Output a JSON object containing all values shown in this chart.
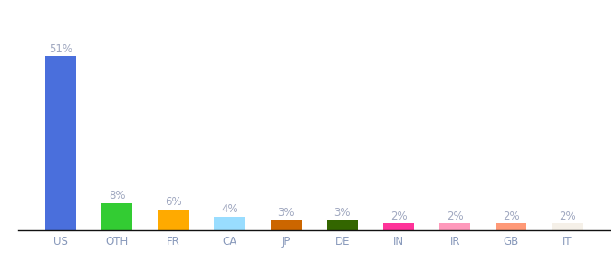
{
  "categories": [
    "US",
    "OTH",
    "FR",
    "CA",
    "JP",
    "DE",
    "IN",
    "IR",
    "GB",
    "IT"
  ],
  "values": [
    51,
    8,
    6,
    4,
    3,
    3,
    2,
    2,
    2,
    2
  ],
  "bar_colors": [
    "#4a6fdc",
    "#33cc33",
    "#ffaa00",
    "#99ddff",
    "#cc6600",
    "#336600",
    "#ff3399",
    "#ff99bb",
    "#ff9977",
    "#f5f0e8"
  ],
  "labels": [
    "51%",
    "8%",
    "6%",
    "4%",
    "3%",
    "3%",
    "2%",
    "2%",
    "2%",
    "2%"
  ],
  "background_color": "#ffffff",
  "ylim": [
    0,
    58
  ],
  "label_fontsize": 8.5,
  "tick_fontsize": 8.5,
  "label_color": "#a0a8c0",
  "tick_color": "#8899bb"
}
